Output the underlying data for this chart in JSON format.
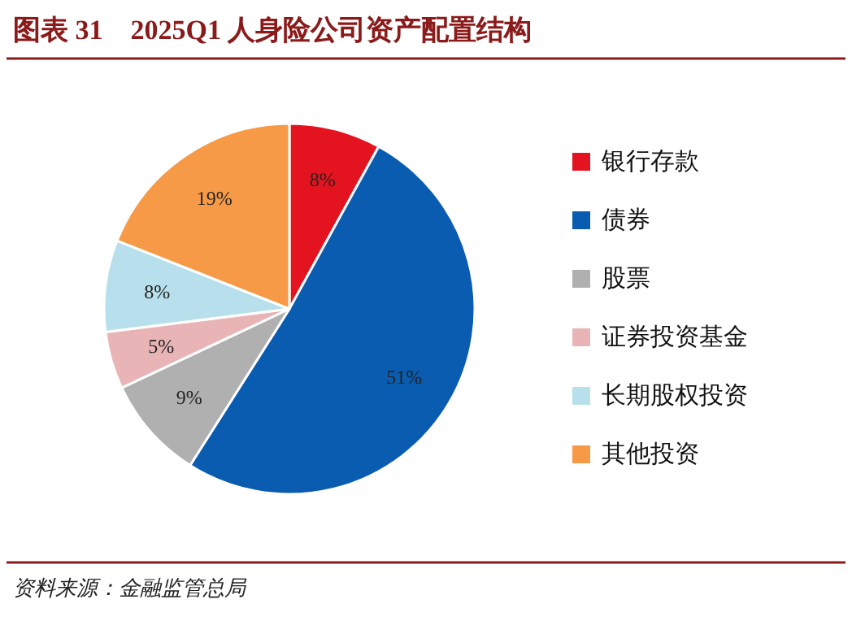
{
  "chart_data": {
    "type": "pie",
    "title": "图表 31　2025Q1 人身险公司资产配置结构",
    "categories": [
      "银行存款",
      "债券",
      "股票",
      "证券投资基金",
      "长期股权投资",
      "其他投资"
    ],
    "values": [
      8,
      51,
      9,
      5,
      8,
      19
    ],
    "colors": [
      "#e3141f",
      "#0a5cb0",
      "#b0b0b0",
      "#e8b4b6",
      "#b8e0ec",
      "#f79a47"
    ],
    "value_labels": [
      "8%",
      "51%",
      "9%",
      "5%",
      "8%",
      "19%"
    ],
    "legend": "right",
    "annotations": [
      "资料来源：金融监管总局"
    ]
  }
}
